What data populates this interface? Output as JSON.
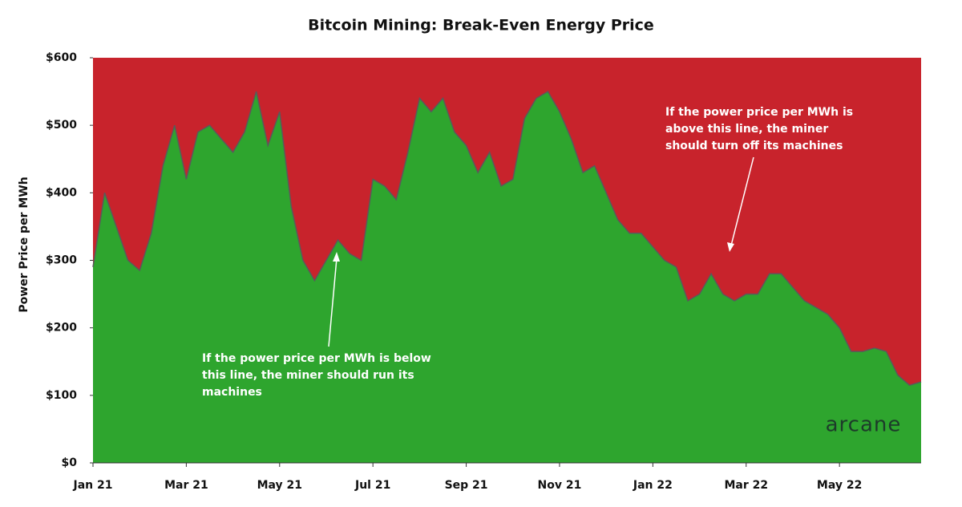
{
  "chart_data": {
    "type": "area",
    "title": "Bitcoin Mining: Break-Even Energy Price",
    "y_label": "Power Price per MWh",
    "categories": [
      "Jan 21",
      null,
      null,
      null,
      null,
      null,
      null,
      null,
      "Mar 21",
      null,
      null,
      null,
      null,
      null,
      null,
      null,
      "May 21",
      null,
      null,
      null,
      null,
      null,
      null,
      null,
      "Jul 21",
      null,
      null,
      null,
      null,
      null,
      null,
      null,
      "Sep 21",
      null,
      null,
      null,
      null,
      null,
      null,
      null,
      "Nov 21",
      null,
      null,
      null,
      null,
      null,
      null,
      null,
      "Jan 22",
      null,
      null,
      null,
      null,
      null,
      null,
      null,
      "Mar 22",
      null,
      null,
      null,
      null,
      null,
      null,
      null,
      "May 22",
      null,
      null,
      null,
      null,
      null,
      null,
      null
    ],
    "series": [
      {
        "name": "Break-even energy price",
        "color": "#2ea52e",
        "values": [
          290,
          400,
          350,
          300,
          285,
          340,
          440,
          500,
          420,
          490,
          500,
          480,
          460,
          490,
          550,
          470,
          520,
          380,
          300,
          270,
          300,
          330,
          310,
          300,
          420,
          410,
          390,
          460,
          540,
          520,
          540,
          490,
          470,
          430,
          460,
          410,
          420,
          510,
          540,
          550,
          520,
          480,
          430,
          440,
          400,
          360,
          340,
          340,
          320,
          300,
          290,
          240,
          250,
          280,
          250,
          240,
          250,
          250,
          280,
          280,
          260,
          240,
          230,
          220,
          200,
          165,
          165,
          170,
          165,
          130,
          115,
          120
        ]
      }
    ],
    "fill_above": "#c8232c",
    "line_color": "#5a5a5a",
    "ylim": [
      0,
      600
    ],
    "yticks": [
      {
        "value": 0,
        "label": "$0"
      },
      {
        "value": 100,
        "label": "$100"
      },
      {
        "value": 200,
        "label": "$200"
      },
      {
        "value": 300,
        "label": "$300"
      },
      {
        "value": 400,
        "label": "$400"
      },
      {
        "value": 500,
        "label": "$500"
      },
      {
        "value": 600,
        "label": "$600"
      }
    ],
    "annotations": [
      {
        "lines": [
          "If the power price per MWh is below",
          "this line, the miner should run its",
          "machines"
        ]
      },
      {
        "lines": [
          "If the power price per MWh is",
          "above this line, the miner",
          "should turn off its machines"
        ]
      }
    ],
    "logo": "arcane"
  }
}
